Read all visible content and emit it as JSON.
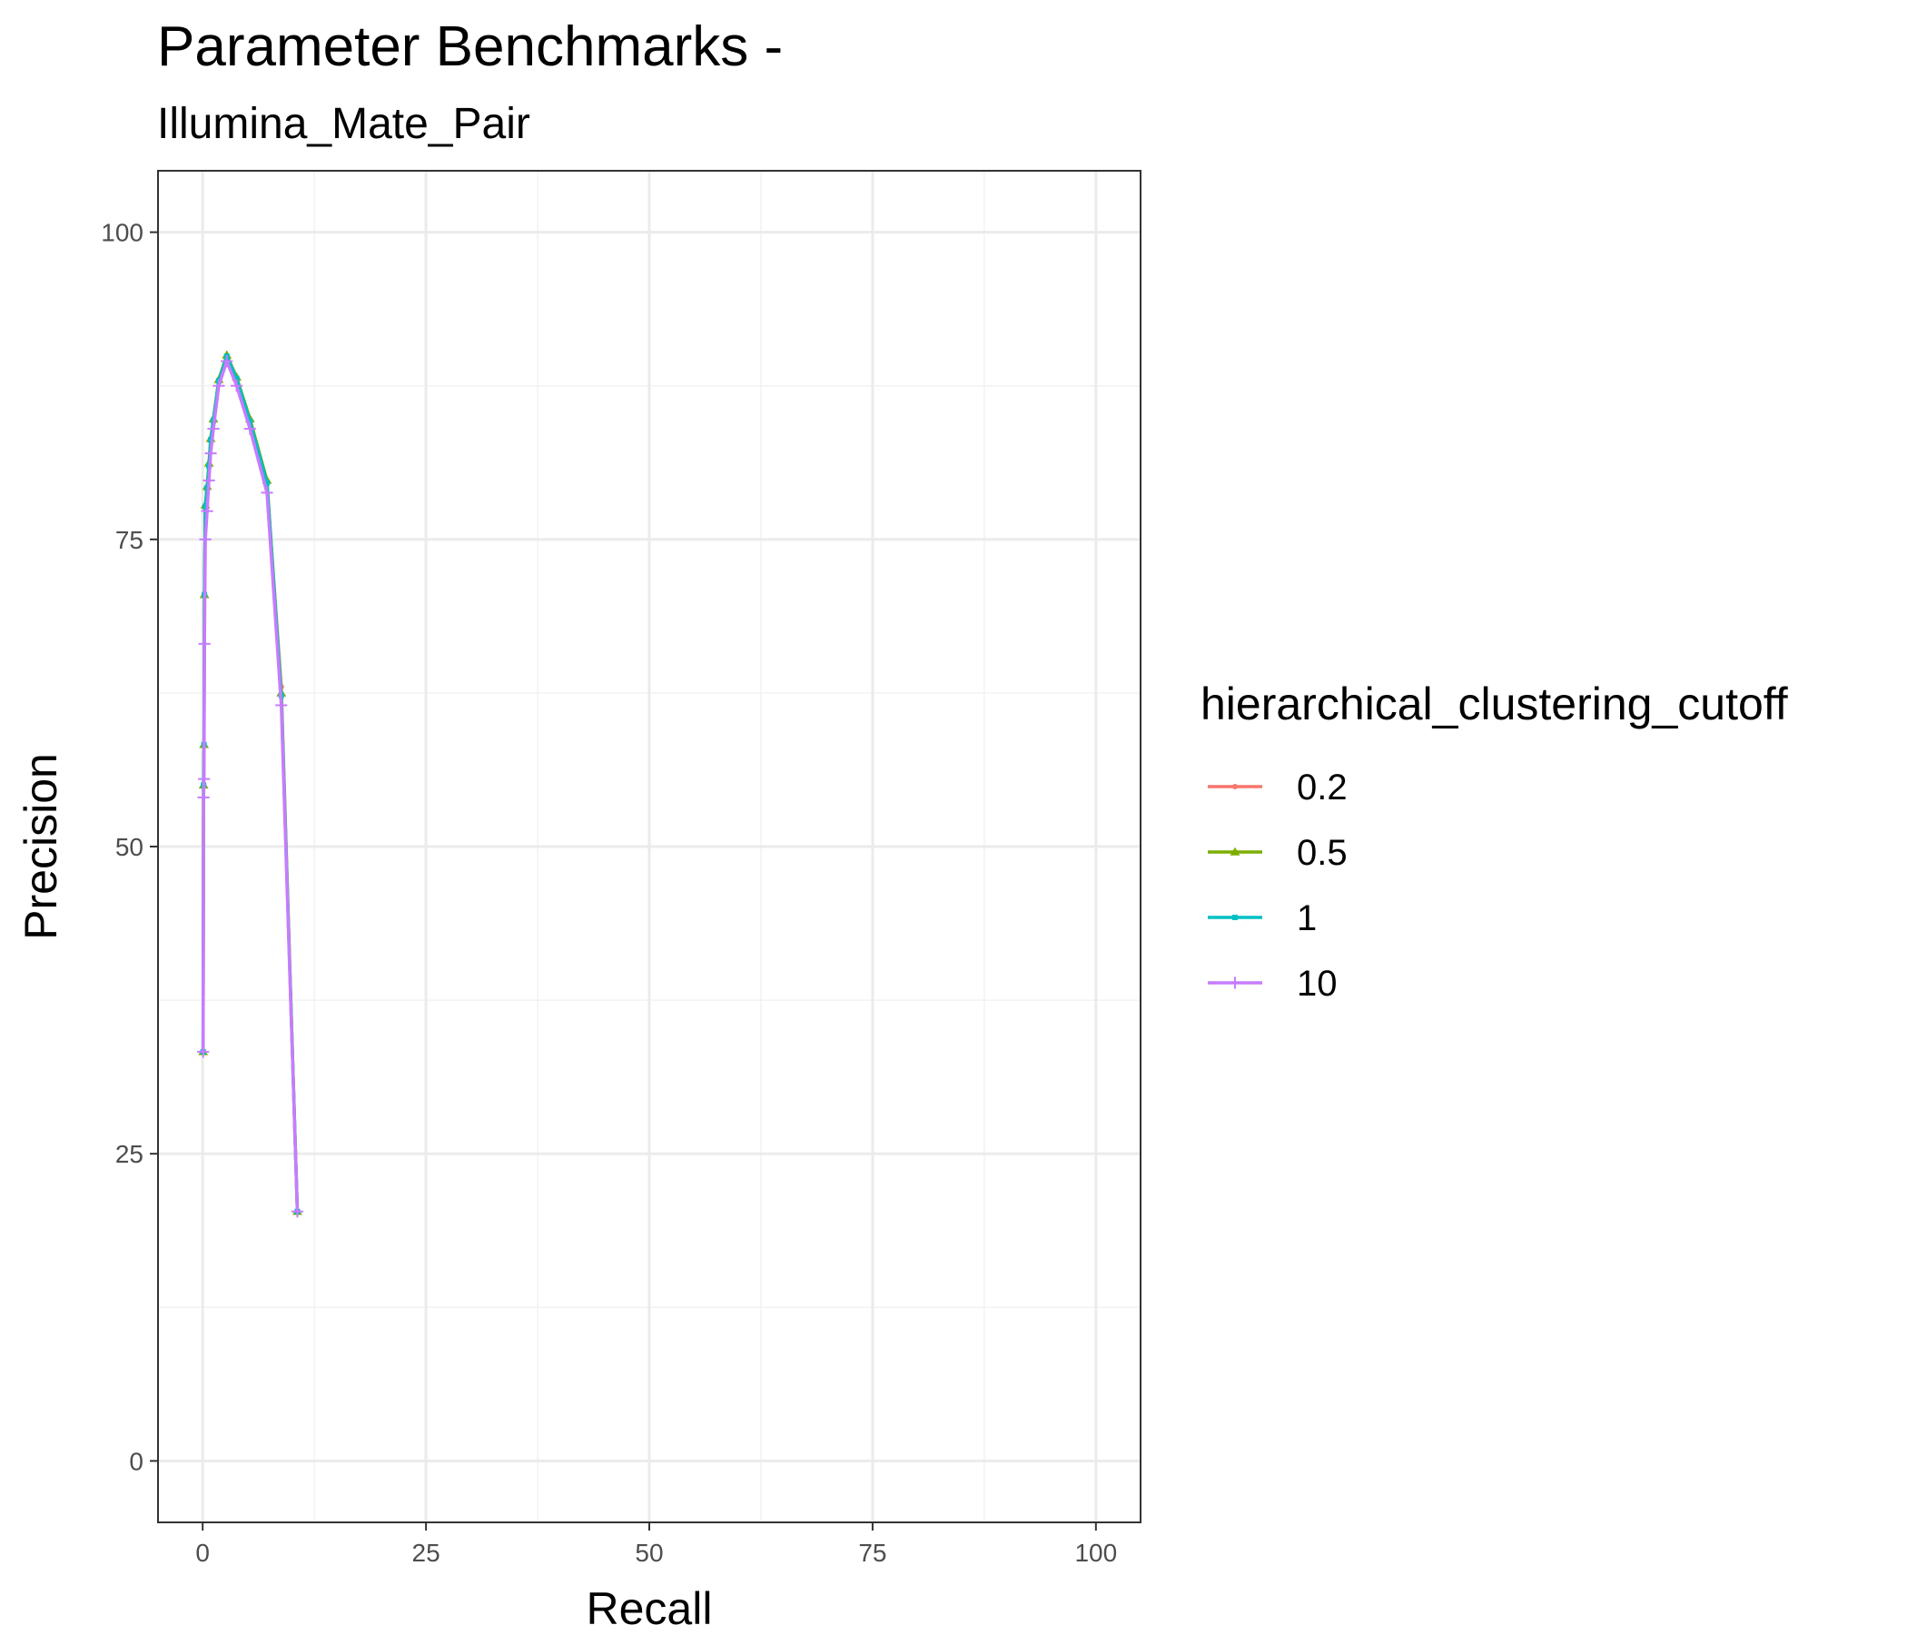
{
  "chart_data": {
    "type": "line",
    "title": "Parameter Benchmarks -",
    "subtitle": "Illumina_Mate_Pair",
    "xlabel": "Recall",
    "ylabel": "Precision",
    "xlim": [
      -5,
      105
    ],
    "ylim": [
      -5,
      105
    ],
    "x_ticks": [
      0,
      25,
      50,
      75,
      100
    ],
    "y_ticks": [
      0,
      25,
      50,
      75,
      100
    ],
    "x_tick_labels": [
      "0",
      "25",
      "50",
      "75",
      "100"
    ],
    "y_tick_labels": [
      "0",
      "25",
      "50",
      "75",
      "100"
    ],
    "grid": true,
    "legend": {
      "title": "hierarchical_clustering_cutoff",
      "position": "right"
    },
    "series": [
      {
        "name": "0.2",
        "color": "#F8766D",
        "marker": "circle",
        "points": [
          [
            0.05,
            33.3
          ],
          [
            0.1,
            55.0
          ],
          [
            0.15,
            58.3
          ],
          [
            0.2,
            70.5
          ],
          [
            0.3,
            77.5
          ],
          [
            0.5,
            79.0
          ],
          [
            0.7,
            80.9
          ],
          [
            0.9,
            83.0
          ],
          [
            1.2,
            84.5
          ],
          [
            1.8,
            87.8
          ],
          [
            2.7,
            89.8
          ],
          [
            3.8,
            88.0
          ],
          [
            5.3,
            84.5
          ],
          [
            7.2,
            79.5
          ],
          [
            8.8,
            63.0
          ],
          [
            10.6,
            20.3
          ]
        ]
      },
      {
        "name": "0.5",
        "color": "#7CAE00",
        "marker": "triangle",
        "points": [
          [
            0.05,
            33.3
          ],
          [
            0.1,
            55.0
          ],
          [
            0.15,
            58.3
          ],
          [
            0.2,
            70.5
          ],
          [
            0.3,
            77.8
          ],
          [
            0.5,
            79.3
          ],
          [
            0.7,
            81.2
          ],
          [
            0.9,
            83.2
          ],
          [
            1.2,
            84.8
          ],
          [
            1.8,
            88.0
          ],
          [
            2.7,
            90.0
          ],
          [
            3.8,
            88.2
          ],
          [
            5.3,
            84.8
          ],
          [
            7.2,
            79.8
          ],
          [
            8.8,
            62.5
          ],
          [
            10.6,
            20.3
          ]
        ]
      },
      {
        "name": "1",
        "color": "#00BFC4",
        "marker": "square",
        "points": [
          [
            0.05,
            33.3
          ],
          [
            0.1,
            55.0
          ],
          [
            0.15,
            58.3
          ],
          [
            0.2,
            70.5
          ],
          [
            0.3,
            77.7
          ],
          [
            0.5,
            79.2
          ],
          [
            0.7,
            81.0
          ],
          [
            0.9,
            83.1
          ],
          [
            1.2,
            84.7
          ],
          [
            1.8,
            87.9
          ],
          [
            2.7,
            89.9
          ],
          [
            3.8,
            88.1
          ],
          [
            5.3,
            84.6
          ],
          [
            7.2,
            79.6
          ],
          [
            8.8,
            62.3
          ],
          [
            10.6,
            20.3
          ]
        ]
      },
      {
        "name": "10",
        "color": "#C77CFF",
        "marker": "plus",
        "points": [
          [
            0.05,
            33.3
          ],
          [
            0.1,
            54.0
          ],
          [
            0.15,
            55.5
          ],
          [
            0.2,
            66.5
          ],
          [
            0.3,
            75.0
          ],
          [
            0.5,
            77.3
          ],
          [
            0.7,
            79.8
          ],
          [
            0.9,
            82.0
          ],
          [
            1.2,
            84.0
          ],
          [
            1.8,
            87.5
          ],
          [
            2.7,
            89.5
          ],
          [
            3.8,
            87.5
          ],
          [
            5.3,
            84.0
          ],
          [
            7.2,
            78.8
          ],
          [
            8.8,
            61.5
          ],
          [
            10.6,
            20.3
          ]
        ]
      }
    ]
  }
}
